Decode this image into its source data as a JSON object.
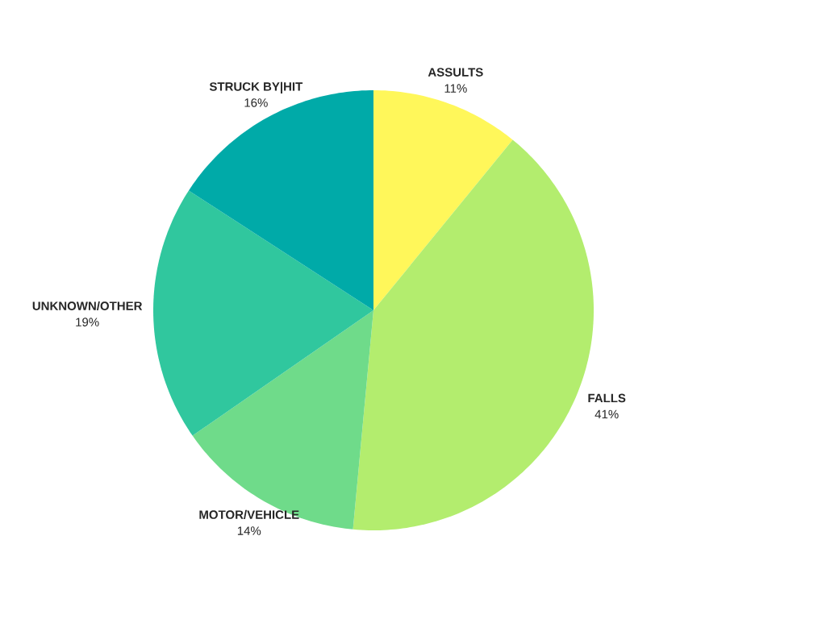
{
  "chart_data": {
    "type": "pie",
    "categories": [
      "ASSULTS",
      "FALLS",
      "MOTOR/VEHICLE",
      "UNKNOWN/OTHER",
      "STRUCK BY|HIT"
    ],
    "values": [
      11,
      41,
      14,
      19,
      16
    ],
    "value_labels": [
      "11%",
      "41%",
      "14%",
      "19%",
      "16%"
    ],
    "colors": [
      "#fff75a",
      "#b3ed6e",
      "#6fdb8a",
      "#30c79e",
      "#00aaa8"
    ]
  }
}
